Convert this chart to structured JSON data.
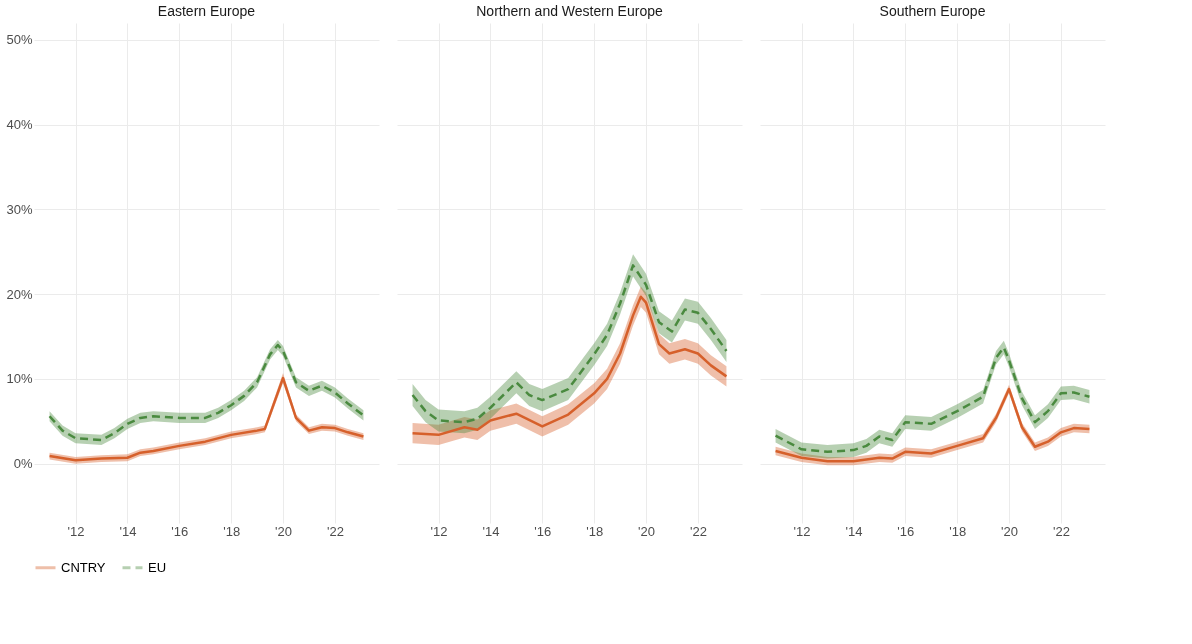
{
  "chart_data": [
    {
      "type": "line",
      "title": "Eastern Europe",
      "xlim": [
        2010.4,
        2023.7
      ],
      "ylim": [
        -7,
        52
      ],
      "grid": true,
      "legend": "bottom",
      "xticks": [
        {
          "value": 2012,
          "label": "'12"
        },
        {
          "value": 2014,
          "label": "'14"
        },
        {
          "value": 2016,
          "label": "'16"
        },
        {
          "value": 2018,
          "label": "'18"
        },
        {
          "value": 2020,
          "label": "'20"
        },
        {
          "value": 2022,
          "label": "'22"
        }
      ],
      "yticks": [
        {
          "value": 0,
          "label": "0%"
        },
        {
          "value": 10,
          "label": "10%"
        },
        {
          "value": 20,
          "label": "20%"
        },
        {
          "value": 30,
          "label": "30%"
        },
        {
          "value": 40,
          "label": "40%"
        },
        {
          "value": 50,
          "label": "50%"
        }
      ],
      "series": [
        {
          "name": "CNTRY",
          "color": "#d6602b",
          "line_style": "solid",
          "x": [
            2011,
            2012,
            2013,
            2014,
            2014.5,
            2015,
            2016,
            2017,
            2018,
            2019,
            2019.3,
            2020,
            2020.5,
            2021,
            2021.5,
            2022,
            2022.5,
            2023.1
          ],
          "values": [
            0.9,
            0.4,
            0.6,
            0.7,
            1.3,
            1.5,
            2.1,
            2.6,
            3.4,
            3.9,
            4.1,
            10.1,
            5.4,
            3.9,
            4.3,
            4.2,
            3.7,
            3.2
          ],
          "lower": [
            0.5,
            0.0,
            0.2,
            0.3,
            0.9,
            1.1,
            1.7,
            2.2,
            3.0,
            3.5,
            3.7,
            9.5,
            5.0,
            3.5,
            3.9,
            3.8,
            3.3,
            2.8
          ],
          "upper": [
            1.3,
            0.8,
            1.0,
            1.1,
            1.7,
            1.9,
            2.5,
            3.0,
            3.8,
            4.3,
            4.5,
            10.7,
            5.8,
            4.3,
            4.7,
            4.6,
            4.1,
            3.6
          ]
        },
        {
          "name": "EU",
          "color": "#4a8a3f",
          "line_style": "dashed",
          "x": [
            2011,
            2011.5,
            2012,
            2013,
            2013.5,
            2014,
            2014.5,
            2015,
            2016,
            2017,
            2017.5,
            2018,
            2018.5,
            2019,
            2019.5,
            2019.8,
            2020,
            2020.5,
            2021,
            2021.5,
            2022,
            2022.5,
            2023.1
          ],
          "values": [
            5.6,
            3.9,
            3.0,
            2.8,
            3.6,
            4.7,
            5.4,
            5.6,
            5.4,
            5.4,
            6.0,
            6.9,
            8.0,
            9.6,
            12.9,
            14.0,
            13.3,
            9.6,
            8.6,
            9.2,
            8.4,
            7.1,
            5.7
          ],
          "lower": [
            5.0,
            3.3,
            2.4,
            2.2,
            3.0,
            4.1,
            4.8,
            5.0,
            4.8,
            4.8,
            5.4,
            6.3,
            7.4,
            9.0,
            12.3,
            13.4,
            12.7,
            9.0,
            8.0,
            8.6,
            7.8,
            6.5,
            5.1
          ],
          "upper": [
            6.2,
            4.5,
            3.6,
            3.4,
            4.2,
            5.3,
            6.0,
            6.2,
            6.0,
            6.0,
            6.6,
            7.5,
            8.6,
            10.2,
            13.5,
            14.6,
            13.9,
            10.2,
            9.2,
            9.8,
            9.0,
            7.7,
            6.3
          ]
        }
      ]
    },
    {
      "type": "line",
      "title": "Northern and Western Europe",
      "xlim": [
        2010.4,
        2023.7
      ],
      "ylim": [
        -7,
        52
      ],
      "grid": true,
      "tick_labels": "x",
      "xticks": [
        {
          "value": 2012,
          "label": "'12"
        },
        {
          "value": 2014,
          "label": "'14"
        },
        {
          "value": 2016,
          "label": "'16"
        },
        {
          "value": 2018,
          "label": "'18"
        },
        {
          "value": 2020,
          "label": "'20"
        },
        {
          "value": 2022,
          "label": "'22"
        }
      ],
      "yticks": [
        {
          "value": 0,
          "label": null
        },
        {
          "value": 10,
          "label": null
        },
        {
          "value": 20,
          "label": null
        },
        {
          "value": 30,
          "label": null
        },
        {
          "value": 40,
          "label": null
        },
        {
          "value": 50,
          "label": null
        }
      ],
      "series": [
        {
          "name": "CNTRY",
          "color": "#d6602b",
          "line_style": "solid",
          "x": [
            2011,
            2012,
            2013,
            2013.5,
            2014,
            2015,
            2016,
            2017,
            2018,
            2018.5,
            2019,
            2019.5,
            2019.8,
            2020,
            2020.5,
            2020.9,
            2021.5,
            2022,
            2022.5,
            2023.1
          ],
          "values": [
            3.6,
            3.4,
            4.3,
            4.0,
            5.1,
            5.9,
            4.4,
            5.8,
            8.3,
            10.0,
            13.0,
            17.5,
            19.7,
            19.0,
            14.1,
            13.0,
            13.5,
            13.0,
            11.6,
            10.3
          ],
          "lower": [
            2.4,
            2.2,
            3.1,
            2.8,
            3.9,
            4.7,
            3.2,
            4.6,
            7.1,
            8.8,
            11.8,
            16.3,
            18.5,
            17.8,
            12.9,
            11.8,
            12.3,
            11.8,
            10.4,
            9.1
          ],
          "upper": [
            4.8,
            4.6,
            5.5,
            5.2,
            6.3,
            7.1,
            5.6,
            7.0,
            9.5,
            11.2,
            14.2,
            18.7,
            20.9,
            20.2,
            15.3,
            14.2,
            14.7,
            14.2,
            12.8,
            11.5
          ]
        },
        {
          "name": "EU",
          "color": "#4a8a3f",
          "line_style": "dashed",
          "x": [
            2011,
            2011.5,
            2012,
            2013,
            2013.5,
            2014,
            2015,
            2015.5,
            2016,
            2017,
            2018,
            2018.5,
            2019,
            2019.5,
            2020,
            2020.5,
            2021,
            2021.5,
            2022,
            2022.5,
            2023.1
          ],
          "values": [
            8.1,
            6.2,
            5.1,
            4.9,
            5.3,
            6.6,
            9.6,
            8.1,
            7.5,
            8.8,
            12.9,
            15.2,
            18.9,
            23.4,
            21.1,
            16.7,
            15.6,
            18.2,
            17.8,
            15.9,
            13.3
          ],
          "lower": [
            6.8,
            4.9,
            3.8,
            3.6,
            4.0,
            5.3,
            8.3,
            6.8,
            6.2,
            7.5,
            11.6,
            13.9,
            17.6,
            22.1,
            19.8,
            15.4,
            14.3,
            16.9,
            16.5,
            14.6,
            12.0
          ],
          "upper": [
            9.4,
            7.5,
            6.4,
            6.2,
            6.6,
            7.9,
            10.9,
            9.4,
            8.8,
            10.1,
            14.2,
            16.5,
            20.2,
            24.7,
            22.4,
            18.0,
            16.9,
            19.5,
            19.1,
            17.2,
            14.6
          ]
        }
      ]
    },
    {
      "type": "line",
      "title": "Southern Europe",
      "xlim": [
        2010.4,
        2023.7
      ],
      "ylim": [
        -7,
        52
      ],
      "grid": true,
      "tick_labels": "x",
      "xticks": [
        {
          "value": 2012,
          "label": "'12"
        },
        {
          "value": 2014,
          "label": "'14"
        },
        {
          "value": 2016,
          "label": "'16"
        },
        {
          "value": 2018,
          "label": "'18"
        },
        {
          "value": 2020,
          "label": "'20"
        },
        {
          "value": 2022,
          "label": "'22"
        }
      ],
      "yticks": [
        {
          "value": 0,
          "label": null
        },
        {
          "value": 10,
          "label": null
        },
        {
          "value": 20,
          "label": null
        },
        {
          "value": 30,
          "label": null
        },
        {
          "value": 40,
          "label": null
        },
        {
          "value": 50,
          "label": null
        }
      ],
      "series": [
        {
          "name": "CNTRY",
          "color": "#d6602b",
          "line_style": "solid",
          "x": [
            2011,
            2012,
            2013,
            2014,
            2015,
            2015.5,
            2016,
            2017,
            2018,
            2019,
            2019.5,
            2020,
            2020.5,
            2021,
            2021.5,
            2022,
            2022.5,
            2023.1
          ],
          "values": [
            1.5,
            0.7,
            0.3,
            0.3,
            0.7,
            0.6,
            1.4,
            1.2,
            2.1,
            3.0,
            5.4,
            8.8,
            4.3,
            2.0,
            2.6,
            3.7,
            4.2,
            4.1
          ],
          "lower": [
            1.0,
            0.2,
            -0.2,
            -0.2,
            0.2,
            0.1,
            0.9,
            0.7,
            1.6,
            2.5,
            4.9,
            8.3,
            3.8,
            1.5,
            2.1,
            3.2,
            3.7,
            3.6
          ],
          "upper": [
            2.0,
            1.2,
            0.8,
            0.8,
            1.2,
            1.1,
            1.9,
            1.7,
            2.6,
            3.5,
            5.9,
            9.3,
            4.8,
            2.5,
            3.1,
            4.2,
            4.7,
            4.6
          ]
        },
        {
          "name": "EU",
          "color": "#4a8a3f",
          "line_style": "dashed",
          "x": [
            2011,
            2012,
            2013,
            2014,
            2014.5,
            2015,
            2015.5,
            2016,
            2017,
            2018,
            2019,
            2019.5,
            2019.8,
            2020,
            2020.5,
            2021,
            2021.5,
            2022,
            2022.5,
            2023.1
          ],
          "values": [
            3.3,
            1.7,
            1.4,
            1.6,
            2.1,
            3.2,
            2.8,
            4.9,
            4.7,
            6.2,
            7.9,
            12.5,
            13.7,
            12.2,
            7.7,
            4.9,
            6.2,
            8.3,
            8.4,
            7.9
          ],
          "lower": [
            2.5,
            0.9,
            0.6,
            0.8,
            1.3,
            2.4,
            2.0,
            4.1,
            3.9,
            5.4,
            7.1,
            11.7,
            12.9,
            11.4,
            6.9,
            4.1,
            5.4,
            7.5,
            7.6,
            7.1
          ],
          "upper": [
            4.1,
            2.5,
            2.2,
            2.4,
            2.9,
            4.0,
            3.6,
            5.7,
            5.5,
            7.0,
            8.7,
            13.3,
            14.5,
            13.0,
            8.5,
            5.7,
            7.0,
            9.1,
            9.2,
            8.7
          ]
        }
      ]
    }
  ]
}
